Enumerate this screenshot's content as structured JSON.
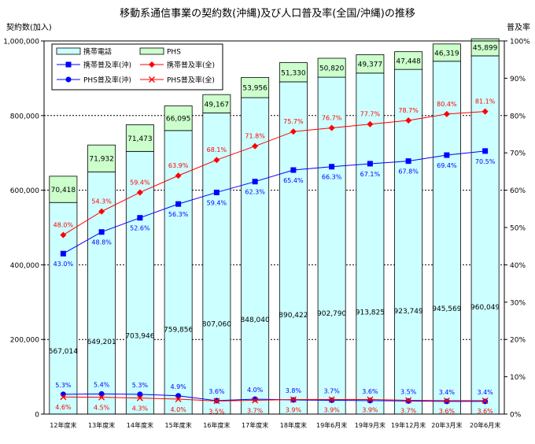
{
  "colors": {
    "keitai_bar": "#ccffff",
    "phs_bar": "#ccffcc",
    "keitai_rate_okinawa": "#0000ff",
    "keitai_rate_national": "#ff0000",
    "phs_rate_okinawa": "#0000ff",
    "phs_rate_national": "#ff0000",
    "grid": "#000000"
  },
  "chart_data": {
    "type": "bar",
    "title": "移動系通信事業の契約数(沖縄)及び人口普及率(全国/沖縄)の推移",
    "ylabel_left": "契約数(加入)",
    "ylabel_right": "普及率",
    "ylim_left": [
      0,
      1000000
    ],
    "ylim_right": [
      0,
      100
    ],
    "yticks_left": [
      "0",
      "200,000",
      "400,000",
      "600,000",
      "800,000",
      "1,000,000"
    ],
    "yticks_right": [
      "0%",
      "10%",
      "20%",
      "30%",
      "40%",
      "50%",
      "60%",
      "70%",
      "80%",
      "90%",
      "100%"
    ],
    "grid": "dashed at 200,000 intervals",
    "legend_placement": "top-left",
    "categories": [
      "12年度末",
      "13年度末",
      "14年度末",
      "15年度末",
      "16年度末",
      "17年度末",
      "18年度末",
      "19年6月末",
      "19年9月末",
      "19年12月末",
      "20年3月末",
      "20年6月末"
    ],
    "series": [
      {
        "name": "携帯電話",
        "kind": "bar_stack_bottom",
        "values": [
          567014,
          649201,
          703946,
          759856,
          807060,
          848040,
          890422,
          902790,
          913825,
          923749,
          945569,
          960049
        ],
        "labels": [
          "567,014",
          "649,201",
          "703,946",
          "759,856",
          "807,060",
          "848,040",
          "890,422",
          "902,790",
          "913,825",
          "923,749",
          "945,569",
          "960,049"
        ]
      },
      {
        "name": "PHS",
        "kind": "bar_stack_top",
        "values": [
          70418,
          71932,
          71473,
          66095,
          49167,
          53956,
          51330,
          50820,
          49377,
          47448,
          46319,
          45899
        ],
        "labels": [
          "70,418",
          "71,932",
          "71,473",
          "66,095",
          "49,167",
          "53,956",
          "51,330",
          "50,820",
          "49,377",
          "47,448",
          "46,319",
          "45,899"
        ]
      },
      {
        "name": "携帯普及率(沖)",
        "kind": "line_right_axis",
        "values": [
          43.0,
          48.8,
          52.6,
          56.3,
          59.4,
          62.3,
          65.4,
          66.3,
          67.1,
          67.8,
          69.4,
          70.5
        ],
        "labels": [
          "43.0%",
          "48.8%",
          "52.6%",
          "56.3%",
          "59.4%",
          "62.3%",
          "65.4%",
          "66.3%",
          "67.1%",
          "67.8%",
          "69.4%",
          "70.5%"
        ]
      },
      {
        "name": "携帯普及率(全)",
        "kind": "line_right_axis",
        "values": [
          48.0,
          54.3,
          59.4,
          63.9,
          68.1,
          71.8,
          75.7,
          76.7,
          77.7,
          78.7,
          80.4,
          81.1
        ],
        "labels": [
          "48.0%",
          "54.3%",
          "59.4%",
          "63.9%",
          "68.1%",
          "71.8%",
          "75.7%",
          "76.7%",
          "77.7%",
          "78.7%",
          "80.4%",
          "81.1%"
        ]
      },
      {
        "name": "PHS普及率(沖)",
        "kind": "line_right_axis",
        "values": [
          5.3,
          5.4,
          5.3,
          4.9,
          3.6,
          4.0,
          3.8,
          3.7,
          3.6,
          3.5,
          3.4,
          3.4
        ],
        "labels": [
          "5.3%",
          "5.4%",
          "5.3%",
          "4.9%",
          "3.6%",
          "4.0%",
          "3.8%",
          "3.7%",
          "3.6%",
          "3.5%",
          "3.4%",
          "3.4%"
        ]
      },
      {
        "name": "PHS普及率(全)",
        "kind": "line_right_axis",
        "values": [
          4.6,
          4.5,
          4.3,
          4.0,
          3.5,
          3.7,
          3.9,
          3.9,
          3.9,
          3.7,
          3.6,
          3.6
        ],
        "labels": [
          "4.6%",
          "4.5%",
          "4.3%",
          "4.0%",
          "3.5%",
          "3.7%",
          "3.9%",
          "3.9%",
          "3.9%",
          "3.7%",
          "3.6%",
          "3.6%"
        ]
      }
    ]
  }
}
